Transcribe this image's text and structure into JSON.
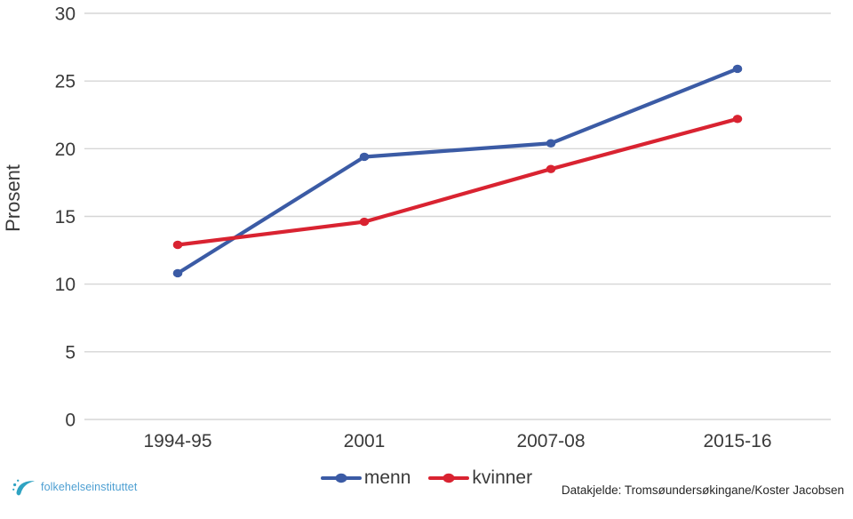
{
  "chart_data": {
    "type": "line",
    "title": "",
    "xlabel": "",
    "ylabel": "Prosent",
    "ylim": [
      0,
      30
    ],
    "yticks": [
      0,
      5,
      10,
      15,
      20,
      25,
      30
    ],
    "grid": "horizontal",
    "legend_position": "bottom-center",
    "categories": [
      "1994-95",
      "2001",
      "2007-08",
      "2015-16"
    ],
    "series": [
      {
        "name": "menn",
        "color": "#3b5ba5",
        "values": [
          10.8,
          19.4,
          20.4,
          25.9
        ]
      },
      {
        "name": "kvinner",
        "color": "#d92331",
        "values": [
          12.9,
          14.6,
          18.5,
          22.2
        ]
      }
    ]
  },
  "footer": {
    "source": "Datakjelde: Tromsøundersøkingane/Koster Jacobsen",
    "logo_text": "folkehelseinstituttet"
  },
  "colors": {
    "gridline": "#d6d6d6",
    "axis_text": "#3a3a3a",
    "source_text": "#262626",
    "logo_text": "#4d9fd2",
    "logo_icon": "#2fa3c2"
  }
}
